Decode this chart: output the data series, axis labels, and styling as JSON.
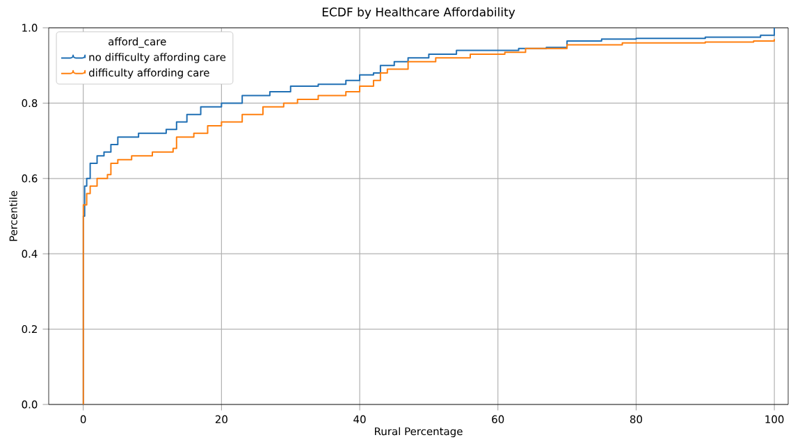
{
  "chart_data": {
    "type": "step",
    "title": "ECDF by Healthcare Affordability",
    "xlabel": "Rural Percentage",
    "ylabel": "Percentile",
    "legend_title": "afford_care",
    "xlim": [
      -5,
      102
    ],
    "ylim": [
      0,
      1
    ],
    "xticks": [
      0,
      20,
      40,
      60,
      80,
      100
    ],
    "yticks": [
      {
        "value": 0,
        "label": "0.0"
      },
      {
        "value": 0.2,
        "label": "0.2"
      },
      {
        "value": 0.4,
        "label": "0.4"
      },
      {
        "value": 0.6,
        "label": "0.6"
      },
      {
        "value": 0.8,
        "label": "0.8"
      },
      {
        "value": 1,
        "label": "1.0"
      }
    ],
    "grid": true,
    "legend": "top left",
    "marker": "none",
    "line_style": "solid",
    "series": [
      {
        "name": "no difficulty affording care",
        "color": "#1f6fb4",
        "x": [
          0,
          0,
          0.2,
          0.5,
          1,
          2,
          3,
          4,
          5,
          8,
          12,
          13.5,
          15,
          17,
          20,
          23,
          27,
          30,
          34,
          38,
          40,
          42,
          43,
          45,
          47,
          50,
          54,
          60,
          63,
          67,
          70,
          75,
          80,
          90,
          98,
          100
        ],
        "values": [
          0,
          0.5,
          0.58,
          0.6,
          0.64,
          0.66,
          0.67,
          0.69,
          0.71,
          0.72,
          0.73,
          0.75,
          0.77,
          0.79,
          0.8,
          0.82,
          0.83,
          0.845,
          0.85,
          0.86,
          0.875,
          0.88,
          0.9,
          0.91,
          0.92,
          0.93,
          0.94,
          0.94,
          0.945,
          0.948,
          0.965,
          0.97,
          0.972,
          0.975,
          0.98,
          1.0
        ]
      },
      {
        "name": "difficulty affording care",
        "color": "#ff7f0e",
        "x": [
          0,
          0,
          0.5,
          1,
          2,
          3.5,
          4,
          5,
          7,
          10,
          13,
          13.5,
          16,
          18,
          20,
          23,
          26,
          29,
          31,
          34,
          38,
          40,
          42,
          43,
          44,
          47,
          51,
          56,
          61,
          64,
          70,
          78,
          90,
          97,
          100
        ],
        "values": [
          0,
          0.53,
          0.56,
          0.58,
          0.6,
          0.61,
          0.64,
          0.65,
          0.66,
          0.67,
          0.68,
          0.71,
          0.72,
          0.74,
          0.75,
          0.77,
          0.79,
          0.8,
          0.81,
          0.82,
          0.83,
          0.845,
          0.86,
          0.88,
          0.89,
          0.91,
          0.92,
          0.93,
          0.935,
          0.945,
          0.955,
          0.96,
          0.962,
          0.965,
          0.97
        ]
      }
    ]
  }
}
